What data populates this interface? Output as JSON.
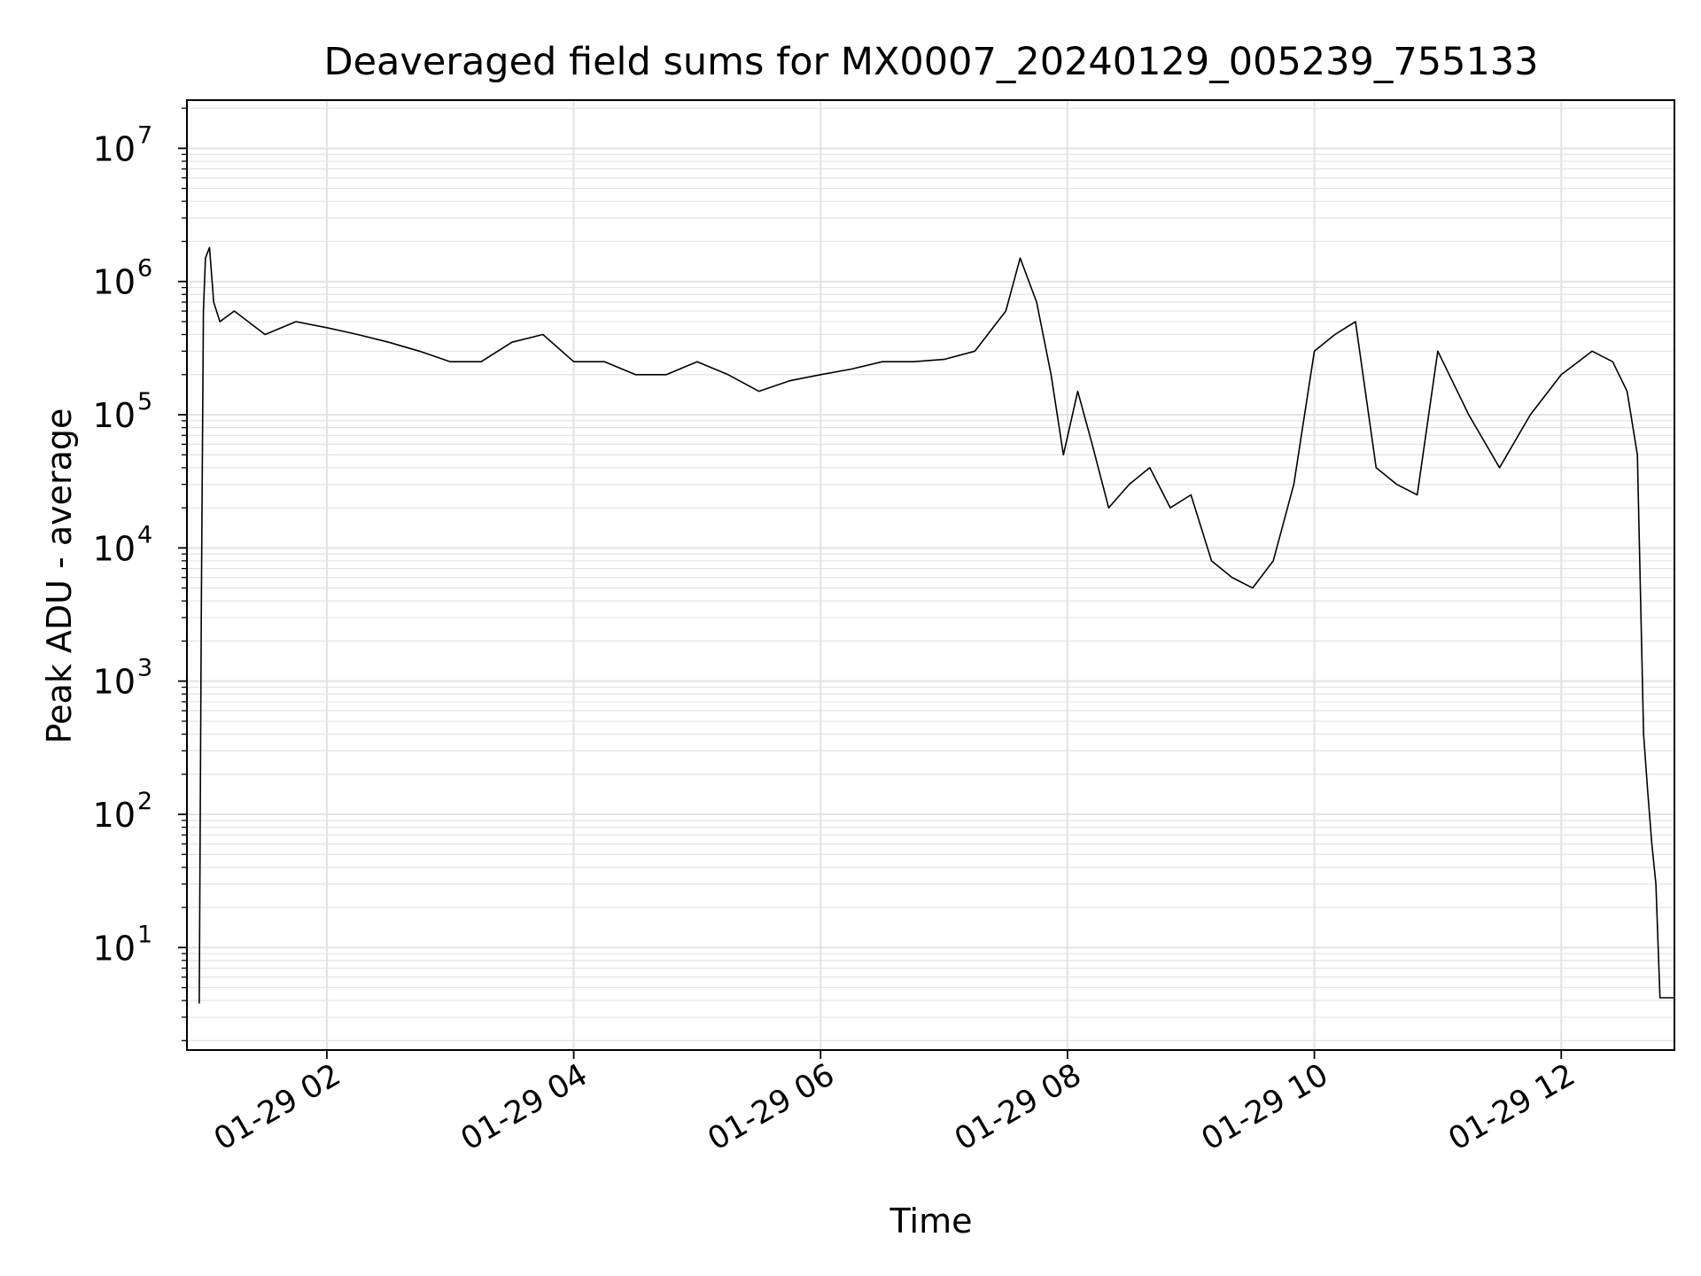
{
  "chart_data": {
    "type": "line",
    "title": "Deaveraged field sums for MX0007_20240129_005239_755133",
    "xlabel": "Time",
    "ylabel": "Peak ADU - average",
    "yscale": "log",
    "ylim": [
      1.7,
      23000000
    ],
    "xlim": [
      "2024-01-29 00:52",
      "2024-01-29 12:55"
    ],
    "grid": true,
    "line_color": "#000000",
    "grid_color": "#e3e3e3",
    "x_ticks": [
      {
        "value": "2024-01-29 02:00",
        "label": "01-29 02"
      },
      {
        "value": "2024-01-29 04:00",
        "label": "01-29 04"
      },
      {
        "value": "2024-01-29 06:00",
        "label": "01-29 06"
      },
      {
        "value": "2024-01-29 08:00",
        "label": "01-29 08"
      },
      {
        "value": "2024-01-29 10:00",
        "label": "01-29 10"
      },
      {
        "value": "2024-01-29 12:00",
        "label": "01-29 12"
      }
    ],
    "y_ticks": [
      {
        "value": 10,
        "base": "10",
        "exp": "1"
      },
      {
        "value": 100,
        "base": "10",
        "exp": "2"
      },
      {
        "value": 1000,
        "base": "10",
        "exp": "3"
      },
      {
        "value": 10000,
        "base": "10",
        "exp": "4"
      },
      {
        "value": 100000,
        "base": "10",
        "exp": "5"
      },
      {
        "value": 1000000,
        "base": "10",
        "exp": "6"
      },
      {
        "value": 10000000,
        "base": "10",
        "exp": "7"
      }
    ],
    "series": [
      {
        "x": [
          "2024-01-29 00:58",
          "2024-01-29 00:59",
          "2024-01-29 01:00",
          "2024-01-29 01:01",
          "2024-01-29 01:03",
          "2024-01-29 01:05",
          "2024-01-29 01:08",
          "2024-01-29 01:15",
          "2024-01-29 01:30",
          "2024-01-29 01:45",
          "2024-01-29 02:00",
          "2024-01-29 02:15",
          "2024-01-29 02:30",
          "2024-01-29 02:45",
          "2024-01-29 03:00",
          "2024-01-29 03:15",
          "2024-01-29 03:30",
          "2024-01-29 03:45",
          "2024-01-29 04:00",
          "2024-01-29 04:15",
          "2024-01-29 04:30",
          "2024-01-29 04:45",
          "2024-01-29 05:00",
          "2024-01-29 05:15",
          "2024-01-29 05:30",
          "2024-01-29 05:45",
          "2024-01-29 06:00",
          "2024-01-29 06:15",
          "2024-01-29 06:30",
          "2024-01-29 06:45",
          "2024-01-29 07:00",
          "2024-01-29 07:15",
          "2024-01-29 07:30",
          "2024-01-29 07:37",
          "2024-01-29 07:45",
          "2024-01-29 07:52",
          "2024-01-29 07:58",
          "2024-01-29 08:05",
          "2024-01-29 08:12",
          "2024-01-29 08:20",
          "2024-01-29 08:30",
          "2024-01-29 08:40",
          "2024-01-29 08:50",
          "2024-01-29 09:00",
          "2024-01-29 09:10",
          "2024-01-29 09:20",
          "2024-01-29 09:30",
          "2024-01-29 09:40",
          "2024-01-29 09:50",
          "2024-01-29 10:00",
          "2024-01-29 10:10",
          "2024-01-29 10:20",
          "2024-01-29 10:30",
          "2024-01-29 10:40",
          "2024-01-29 10:50",
          "2024-01-29 11:00",
          "2024-01-29 11:15",
          "2024-01-29 11:30",
          "2024-01-29 11:45",
          "2024-01-29 12:00",
          "2024-01-29 12:15",
          "2024-01-29 12:25",
          "2024-01-29 12:32",
          "2024-01-29 12:37",
          "2024-01-29 12:40",
          "2024-01-29 12:42",
          "2024-01-29 12:44",
          "2024-01-29 12:46",
          "2024-01-29 12:48",
          "2024-01-29 12:55"
        ],
        "values": [
          3.8,
          4000,
          600000,
          1500000,
          1800000,
          700000,
          500000,
          600000,
          400000,
          500000,
          450000,
          400000,
          350000,
          300000,
          250000,
          250000,
          350000,
          400000,
          250000,
          250000,
          200000,
          200000,
          250000,
          200000,
          150000,
          180000,
          200000,
          220000,
          250000,
          250000,
          260000,
          300000,
          600000,
          1500000,
          700000,
          200000,
          50000,
          150000,
          60000,
          20000,
          30000,
          40000,
          20000,
          25000,
          8000,
          6000,
          5000,
          8000,
          30000,
          300000,
          400000,
          500000,
          40000,
          30000,
          25000,
          300000,
          100000,
          40000,
          100000,
          200000,
          300000,
          250000,
          150000,
          50000,
          400,
          150,
          60,
          30,
          4.2,
          4.2
        ]
      }
    ]
  }
}
